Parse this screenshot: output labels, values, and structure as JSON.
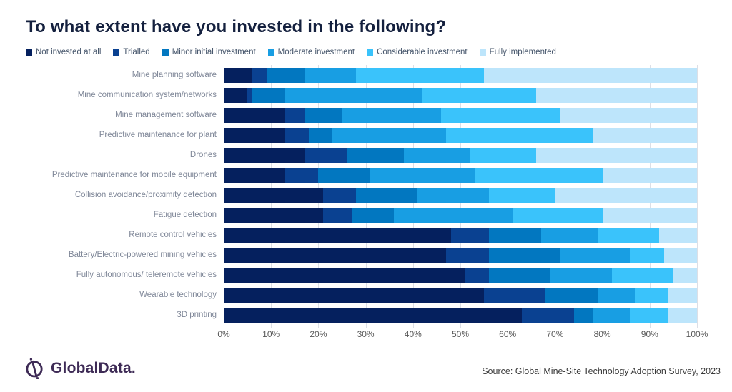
{
  "title": "To what extent have you invested in the following?",
  "source": "Source: Global Mine-Site Technology Adoption Survey, 2023",
  "brand": {
    "name": "GlobalData.",
    "color": "#3e2b56"
  },
  "chart_data": {
    "type": "bar",
    "stacked": true,
    "orientation": "horizontal",
    "title": "To what extent have you invested in the following?",
    "legend_position": "top",
    "grid": true,
    "gridline_color": "#dcdfe6",
    "xlim": [
      0,
      100
    ],
    "x_ticks": [
      "0%",
      "10%",
      "20%",
      "30%",
      "40%",
      "50%",
      "60%",
      "70%",
      "80%",
      "90%",
      "100%"
    ],
    "categories": [
      "Mine planning software",
      "Mine communication system/networks",
      "Mine management software",
      "Predictive maintenance for plant",
      "Drones",
      "Predictive maintenance for mobile equipment",
      "Collision avoidance/proximity detection",
      "Fatigue detection",
      "Remote control vehicles",
      "Battery/Electric-powered mining vehicles",
      "Fully autonomous/ teleremote vehicles",
      "Wearable technology",
      "3D printing"
    ],
    "series": [
      {
        "name": "Not invested at all",
        "color": "#05205e",
        "values": [
          6,
          5,
          13,
          13,
          17,
          13,
          21,
          21,
          48,
          47,
          51,
          55,
          63
        ]
      },
      {
        "name": "Trialled",
        "color": "#0a4191",
        "values": [
          3,
          1,
          4,
          5,
          9,
          7,
          7,
          6,
          8,
          9,
          5,
          13,
          11
        ]
      },
      {
        "name": "Minor initial investment",
        "color": "#0277c0",
        "values": [
          8,
          7,
          8,
          5,
          12,
          11,
          13,
          9,
          11,
          15,
          13,
          11,
          4
        ]
      },
      {
        "name": "Moderate investment",
        "color": "#189ee3",
        "values": [
          11,
          29,
          21,
          24,
          14,
          22,
          15,
          25,
          12,
          15,
          13,
          8,
          8
        ]
      },
      {
        "name": "Considerable investment",
        "color": "#3ac3fb",
        "values": [
          27,
          24,
          25,
          31,
          14,
          27,
          14,
          19,
          13,
          7,
          13,
          7,
          8
        ]
      },
      {
        "name": "Fully implemented",
        "color": "#bde5fb",
        "values": [
          45,
          34,
          29,
          22,
          34,
          20,
          30,
          20,
          8,
          7,
          5,
          6,
          6
        ]
      }
    ]
  }
}
